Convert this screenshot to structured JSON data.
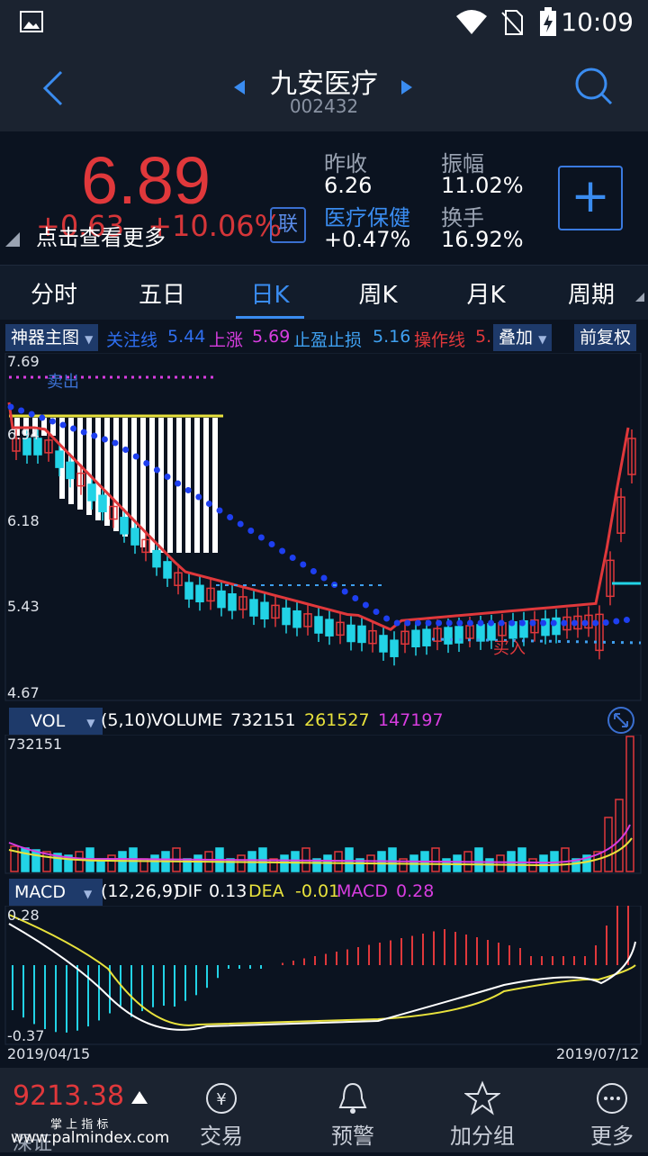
{
  "status": {
    "time": "10:09"
  },
  "header": {
    "title": "九安医疗",
    "code": "002432"
  },
  "quote": {
    "price": "6.89",
    "change": "+0.63",
    "change_pct": "+10.06%",
    "tip": "点击查看更多",
    "lian": "联",
    "prev_close_label": "昨收",
    "prev_close": "6.26",
    "amplitude_label": "振幅",
    "amplitude": "11.02%",
    "sector": "医疗保健",
    "sector_change": "+0.47%",
    "turnover_label": "换手",
    "turnover": "16.92%",
    "add_label": "+"
  },
  "tabs": [
    "分时",
    "五日",
    "日K",
    "周K",
    "月K",
    "周期"
  ],
  "indicator_bar": {
    "main_select": "神器主图",
    "focus_label": "关注线",
    "focus_val": "5.44",
    "rise_label": "上涨",
    "rise_val": "5.69",
    "stop_label": "止盈止损",
    "stop_val": "5.16",
    "op_label": "操作线",
    "op_val": "5.",
    "overlay": "叠加",
    "adjust": "前复权"
  },
  "kchart": {
    "y_labels": [
      "7.69",
      "6.94",
      "6.18",
      "5.43",
      "4.67"
    ],
    "sell_label": "卖出",
    "buy_label": "买入"
  },
  "vol": {
    "select": "VOL",
    "params": "(5,10)",
    "volume_label": "VOLUME",
    "volume": "732151",
    "ma5": "261527",
    "ma10": "147197",
    "top_label": "732151"
  },
  "macd": {
    "select": "MACD",
    "params": "(12,26,9)",
    "dif_label": "DIF",
    "dif": "0.13",
    "dea_label": "DEA",
    "dea": "-0.01",
    "macd_label": "MACD",
    "macd": "0.28",
    "top_label": "0.28",
    "bottom_label": "-0.37",
    "date_start": "2019/04/15",
    "date_end": "2019/07/12"
  },
  "nav": {
    "index_value": "9213.38",
    "index_sub": "掌 上 指 标",
    "index_name": "深证",
    "watermark": "www.palmindex.com",
    "items": [
      "交易",
      "预警",
      "加分组",
      "更多"
    ]
  },
  "colors": {
    "up": "#e0383b",
    "down": "#22d3e6",
    "accent": "#3a8cf0"
  }
}
